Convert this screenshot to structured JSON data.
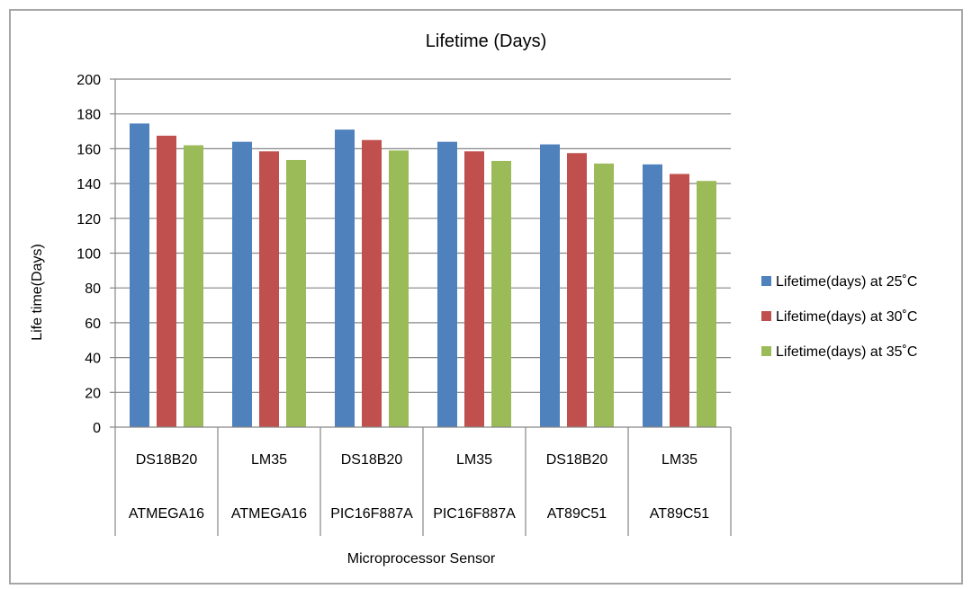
{
  "chart_data": {
    "type": "bar",
    "title": "Lifetime (Days)",
    "xlabel": "Microprocessor Sensor",
    "ylabel": "Life time(Days)",
    "ylim": [
      0,
      200
    ],
    "yticks": [
      0,
      20,
      40,
      60,
      80,
      100,
      120,
      140,
      160,
      180,
      200
    ],
    "ytick_labels": [
      "0",
      "20",
      "40",
      "60",
      "80",
      "100",
      "120",
      "140",
      "160",
      "180",
      "200"
    ],
    "grid": true,
    "legend_position": "right",
    "categories": [
      {
        "sensor": "DS18B20",
        "processor": "ATMEGA16"
      },
      {
        "sensor": "LM35",
        "processor": "ATMEGA16"
      },
      {
        "sensor": "DS18B20",
        "processor": "PIC16F887A"
      },
      {
        "sensor": "LM35",
        "processor": "PIC16F887A"
      },
      {
        "sensor": "DS18B20",
        "processor": "AT89C51"
      },
      {
        "sensor": "LM35",
        "processor": "AT89C51"
      }
    ],
    "series": [
      {
        "name": "Lifetime(days) at 25˚C",
        "color": "#4f81bd",
        "values": [
          174.5,
          164,
          171,
          164,
          162.5,
          151
        ]
      },
      {
        "name": "Lifetime(days) at 30˚C",
        "color": "#c0504d",
        "values": [
          167.5,
          158.5,
          165,
          158.5,
          157.5,
          145.5
        ]
      },
      {
        "name": "Lifetime(days) at 35˚C",
        "color": "#9bbb59",
        "values": [
          162,
          153.5,
          159,
          153,
          151.5,
          141.5
        ]
      }
    ]
  }
}
